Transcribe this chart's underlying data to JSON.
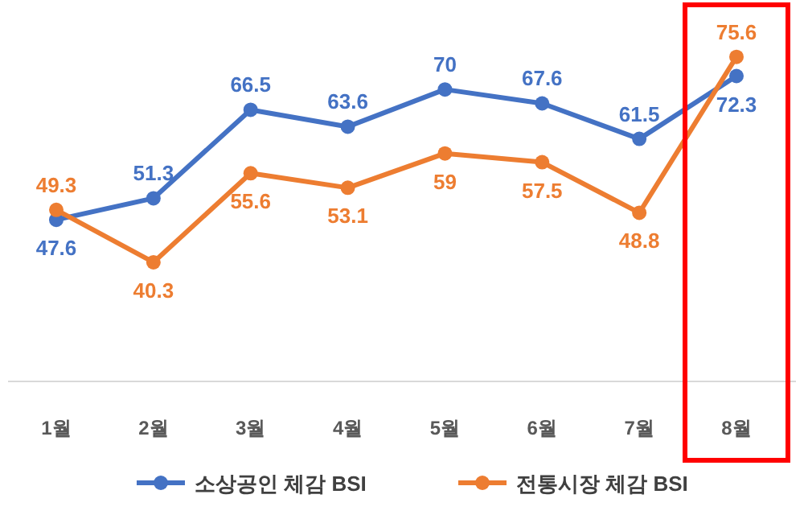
{
  "chart_data": {
    "type": "line",
    "categories": [
      "1월",
      "2월",
      "3월",
      "4월",
      "5월",
      "6월",
      "7월",
      "8월"
    ],
    "series": [
      {
        "name": "소상공인 체감 BSI",
        "color": "#4472c4",
        "values": [
          47.6,
          51.3,
          66.5,
          63.6,
          70,
          67.6,
          61.5,
          72.3
        ]
      },
      {
        "name": "전통시장 체감 BSI",
        "color": "#ed7d31",
        "values": [
          49.3,
          40.3,
          55.6,
          53.1,
          59,
          57.5,
          48.8,
          75.6
        ]
      }
    ],
    "tick_labels": "x",
    "data_labels": true,
    "marker": "circle",
    "line_style": "solid",
    "legend": "bottom"
  }
}
